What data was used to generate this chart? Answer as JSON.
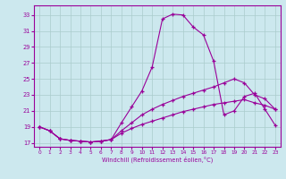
{
  "xlabel": "Windchill (Refroidissement éolien,°C)",
  "bg_color": "#cce8ee",
  "grid_color": "#aacccc",
  "line_color": "#990099",
  "ylim": [
    16.5,
    34.2
  ],
  "xlim": [
    -0.5,
    23.5
  ],
  "yticks": [
    17,
    19,
    21,
    23,
    25,
    27,
    29,
    31,
    33
  ],
  "xticks": [
    0,
    1,
    2,
    3,
    4,
    5,
    6,
    7,
    8,
    9,
    10,
    11,
    12,
    13,
    14,
    15,
    16,
    17,
    18,
    19,
    20,
    21,
    22,
    23
  ],
  "series": [
    {
      "x": [
        0,
        1,
        2,
        3,
        4,
        5,
        6,
        7,
        8,
        9,
        10,
        11,
        12,
        13,
        14,
        15,
        16,
        17,
        18,
        19,
        20,
        21,
        22,
        23
      ],
      "y": [
        19,
        18.5,
        17.5,
        17.3,
        17.2,
        17.1,
        17.2,
        17.4,
        19.5,
        21.5,
        23.5,
        26.5,
        32.5,
        33.1,
        33.0,
        31.5,
        30.5,
        27.2,
        20.5,
        21.0,
        22.8,
        23.2,
        21.2,
        19.2
      ]
    },
    {
      "x": [
        0,
        1,
        2,
        3,
        4,
        5,
        6,
        7,
        8,
        9,
        10,
        11,
        12,
        13,
        14,
        15,
        16,
        17,
        18,
        19,
        20,
        21,
        22,
        23
      ],
      "y": [
        19,
        18.5,
        17.5,
        17.3,
        17.2,
        17.1,
        17.2,
        17.4,
        18.5,
        19.5,
        20.5,
        21.2,
        21.8,
        22.3,
        22.8,
        23.2,
        23.6,
        24.0,
        24.5,
        25.0,
        24.5,
        23.0,
        22.5,
        21.2
      ]
    },
    {
      "x": [
        0,
        1,
        2,
        3,
        4,
        5,
        6,
        7,
        8,
        9,
        10,
        11,
        12,
        13,
        14,
        15,
        16,
        17,
        18,
        19,
        20,
        21,
        22,
        23
      ],
      "y": [
        19,
        18.5,
        17.5,
        17.3,
        17.2,
        17.1,
        17.2,
        17.4,
        18.2,
        18.8,
        19.3,
        19.7,
        20.1,
        20.5,
        20.9,
        21.2,
        21.5,
        21.8,
        22.0,
        22.2,
        22.4,
        22.0,
        21.7,
        21.2
      ]
    }
  ]
}
